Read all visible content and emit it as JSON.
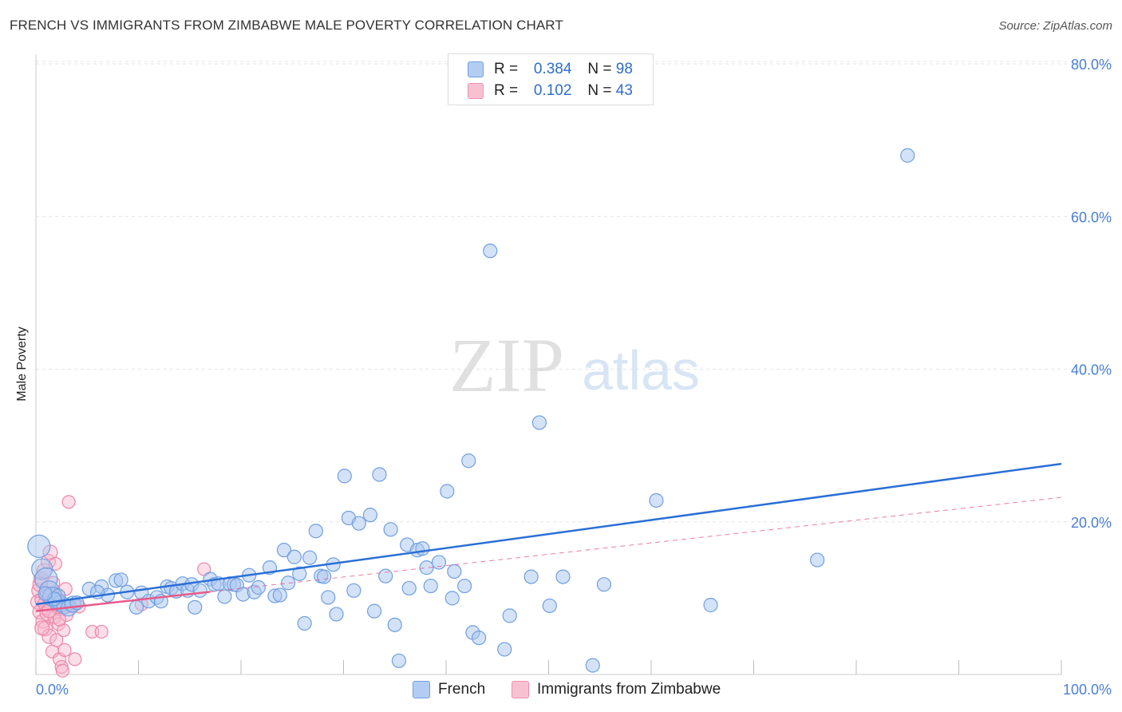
{
  "header": {
    "title": "FRENCH VS IMMIGRANTS FROM ZIMBABWE MALE POVERTY CORRELATION CHART",
    "source": "Source: ZipAtlas.com"
  },
  "watermark": {
    "zip": "ZIP",
    "atlas": "atlas"
  },
  "legend": {
    "french": {
      "r_label": "R =",
      "r_value": "0.384",
      "n_label": "N =",
      "n_value": "98"
    },
    "zimbabwe": {
      "r_label": "R =",
      "r_value": "0.102",
      "n_label": "N =",
      "n_value": "43"
    }
  },
  "colors": {
    "french_fill": "#a9c6ef",
    "french_stroke": "#6f9fe0",
    "french_line": "#2a6fd6",
    "zim_fill": "#f6b6cb",
    "zim_stroke": "#ec86a8",
    "zim_line": "#e85a8a",
    "tick_label": "#4a7fd4",
    "grid": "#e3e3e3"
  },
  "chart_data": {
    "type": "scatter",
    "title": "FRENCH VS IMMIGRANTS FROM ZIMBABWE MALE POVERTY CORRELATION CHART",
    "xlabel": "",
    "ylabel": "Male Poverty",
    "xlim": [
      0,
      100
    ],
    "ylim": [
      0,
      80
    ],
    "x_tick_labels": [
      "0.0%",
      "100.0%"
    ],
    "y_ticks": [
      20,
      40,
      60,
      80
    ],
    "y_tick_labels": [
      "20.0%",
      "40.0%",
      "60.0%",
      "80.0%"
    ],
    "grid": true,
    "legend_position": "top-center",
    "series": [
      {
        "name": "French",
        "r": 0.384,
        "n": 98,
        "trend": {
          "x": [
            0,
            100
          ],
          "y": [
            9.2,
            27.6
          ]
        },
        "points": [
          [
            0.3,
            16.8
          ],
          [
            0.6,
            13.8
          ],
          [
            1.0,
            12.5
          ],
          [
            1.3,
            11.0
          ],
          [
            1.6,
            10.2
          ],
          [
            2.0,
            9.6
          ],
          [
            2.4,
            9.3
          ],
          [
            2.8,
            9.0
          ],
          [
            3.2,
            8.7
          ],
          [
            3.6,
            9.2
          ],
          [
            5.2,
            11.2
          ],
          [
            6.4,
            11.5
          ],
          [
            7.0,
            10.4
          ],
          [
            7.8,
            12.3
          ],
          [
            8.3,
            12.4
          ],
          [
            8.9,
            10.8
          ],
          [
            9.8,
            8.8
          ],
          [
            10.3,
            10.7
          ],
          [
            11.0,
            9.6
          ],
          [
            11.8,
            10.1
          ],
          [
            12.2,
            9.6
          ],
          [
            12.8,
            11.5
          ],
          [
            13.2,
            11.3
          ],
          [
            13.7,
            10.9
          ],
          [
            14.3,
            11.9
          ],
          [
            14.8,
            11.0
          ],
          [
            15.2,
            11.8
          ],
          [
            15.5,
            8.8
          ],
          [
            16.0,
            11.0
          ],
          [
            17.0,
            12.5
          ],
          [
            17.4,
            11.8
          ],
          [
            17.8,
            11.9
          ],
          [
            18.4,
            10.2
          ],
          [
            18.9,
            11.9
          ],
          [
            19.3,
            11.8
          ],
          [
            19.6,
            11.7
          ],
          [
            20.2,
            10.5
          ],
          [
            20.8,
            13.0
          ],
          [
            21.3,
            10.8
          ],
          [
            21.7,
            11.4
          ],
          [
            22.8,
            14.0
          ],
          [
            23.3,
            10.3
          ],
          [
            23.8,
            10.4
          ],
          [
            24.2,
            16.3
          ],
          [
            24.6,
            12.0
          ],
          [
            25.2,
            15.4
          ],
          [
            25.7,
            13.2
          ],
          [
            26.2,
            6.7
          ],
          [
            26.7,
            15.3
          ],
          [
            27.3,
            18.8
          ],
          [
            27.8,
            12.9
          ],
          [
            28.1,
            12.8
          ],
          [
            28.5,
            10.1
          ],
          [
            29.0,
            14.4
          ],
          [
            29.3,
            7.9
          ],
          [
            30.1,
            26.0
          ],
          [
            30.5,
            20.5
          ],
          [
            31.0,
            11.0
          ],
          [
            31.5,
            19.8
          ],
          [
            32.6,
            20.9
          ],
          [
            33.0,
            8.3
          ],
          [
            33.5,
            26.2
          ],
          [
            34.1,
            12.9
          ],
          [
            34.6,
            19.0
          ],
          [
            35.0,
            6.5
          ],
          [
            35.4,
            1.8
          ],
          [
            36.2,
            17.0
          ],
          [
            36.4,
            11.3
          ],
          [
            37.2,
            16.3
          ],
          [
            37.7,
            16.5
          ],
          [
            38.1,
            14.0
          ],
          [
            38.5,
            11.6
          ],
          [
            39.3,
            14.7
          ],
          [
            40.1,
            24.0
          ],
          [
            40.6,
            10.0
          ],
          [
            40.8,
            13.5
          ],
          [
            41.8,
            11.6
          ],
          [
            42.2,
            28.0
          ],
          [
            42.6,
            5.5
          ],
          [
            43.2,
            4.8
          ],
          [
            44.3,
            55.5
          ],
          [
            45.7,
            3.3
          ],
          [
            46.2,
            7.7
          ],
          [
            48.3,
            12.8
          ],
          [
            49.1,
            33.0
          ],
          [
            50.1,
            9.0
          ],
          [
            51.4,
            12.8
          ],
          [
            54.3,
            1.2
          ],
          [
            55.4,
            11.8
          ],
          [
            60.5,
            22.8
          ],
          [
            65.8,
            9.1
          ],
          [
            76.2,
            15.0
          ],
          [
            85.0,
            68.0
          ],
          [
            2.2,
            10.3
          ],
          [
            4.0,
            9.4
          ],
          [
            6.0,
            10.8
          ],
          [
            1.8,
            9.9
          ],
          [
            0.9,
            10.6
          ]
        ]
      },
      {
        "name": "Immigrants from Zimbabwe",
        "r": 0.102,
        "n": 43,
        "trend": {
          "x": [
            0,
            100
          ],
          "y": [
            8.3,
            23.2
          ]
        },
        "points": [
          [
            0.2,
            9.5
          ],
          [
            0.3,
            11.0
          ],
          [
            0.4,
            8.2
          ],
          [
            0.5,
            12.5
          ],
          [
            0.6,
            9.8
          ],
          [
            0.7,
            7.0
          ],
          [
            0.8,
            13.6
          ],
          [
            0.9,
            6.0
          ],
          [
            1.0,
            10.5
          ],
          [
            1.1,
            8.0
          ],
          [
            1.2,
            14.8
          ],
          [
            1.3,
            5.0
          ],
          [
            1.4,
            16.0
          ],
          [
            1.5,
            9.0
          ],
          [
            1.6,
            3.0
          ],
          [
            1.7,
            12.0
          ],
          [
            1.8,
            7.5
          ],
          [
            1.9,
            14.5
          ],
          [
            2.0,
            4.5
          ],
          [
            2.1,
            10.0
          ],
          [
            2.2,
            6.6
          ],
          [
            2.3,
            2.0
          ],
          [
            2.4,
            8.5
          ],
          [
            2.5,
            1.0
          ],
          [
            2.6,
            0.5
          ],
          [
            2.7,
            5.8
          ],
          [
            2.8,
            3.2
          ],
          [
            2.9,
            11.2
          ],
          [
            3.0,
            7.8
          ],
          [
            3.2,
            22.6
          ],
          [
            3.3,
            9.0
          ],
          [
            3.8,
            2.0
          ],
          [
            4.2,
            8.9
          ],
          [
            5.5,
            5.6
          ],
          [
            6.4,
            5.6
          ],
          [
            10.3,
            9.2
          ],
          [
            16.4,
            13.8
          ],
          [
            0.4,
            11.8
          ],
          [
            0.9,
            9.3
          ],
          [
            1.3,
            8.4
          ],
          [
            1.9,
            10.6
          ],
          [
            2.3,
            7.2
          ],
          [
            0.6,
            6.1
          ]
        ]
      }
    ]
  },
  "bottom_legend": {
    "french": "French",
    "zimbabwe": "Immigrants from Zimbabwe"
  }
}
